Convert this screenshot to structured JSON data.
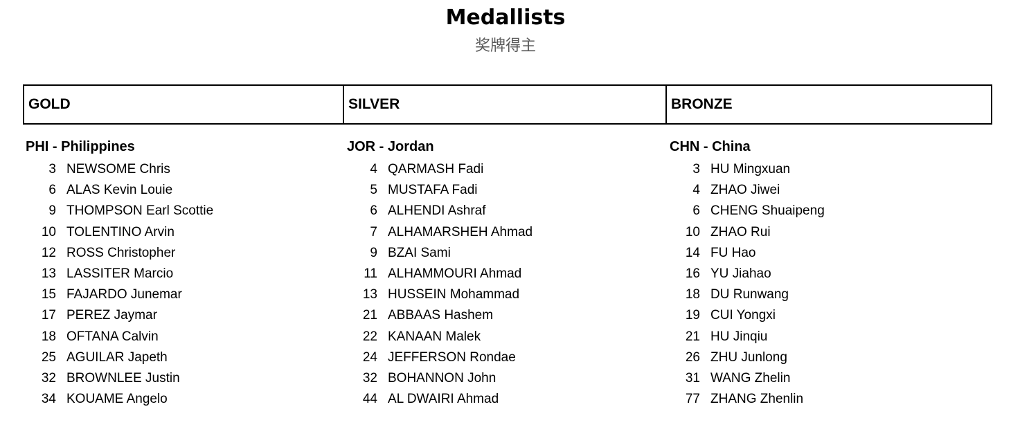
{
  "page": {
    "title": "Medallists",
    "subtitle": "奖牌得主"
  },
  "colors": {
    "text": "#000000",
    "subtitle_gray": "#595959",
    "border": "#000000",
    "background": "#ffffff"
  },
  "columns": [
    {
      "medal": "GOLD",
      "team": "PHI - Philippines",
      "players": [
        {
          "number": "3",
          "name": "NEWSOME Chris"
        },
        {
          "number": "6",
          "name": "ALAS Kevin Louie"
        },
        {
          "number": "9",
          "name": "THOMPSON Earl Scottie"
        },
        {
          "number": "10",
          "name": "TOLENTINO Arvin"
        },
        {
          "number": "12",
          "name": "ROSS Christopher"
        },
        {
          "number": "13",
          "name": "LASSITER Marcio"
        },
        {
          "number": "15",
          "name": "FAJARDO Junemar"
        },
        {
          "number": "17",
          "name": "PEREZ Jaymar"
        },
        {
          "number": "18",
          "name": "OFTANA Calvin"
        },
        {
          "number": "25",
          "name": "AGUILAR Japeth"
        },
        {
          "number": "32",
          "name": "BROWNLEE Justin"
        },
        {
          "number": "34",
          "name": "KOUAME Angelo"
        }
      ]
    },
    {
      "medal": "SILVER",
      "team": "JOR - Jordan",
      "players": [
        {
          "number": "4",
          "name": "QARMASH Fadi"
        },
        {
          "number": "5",
          "name": "MUSTAFA Fadi"
        },
        {
          "number": "6",
          "name": "ALHENDI Ashraf"
        },
        {
          "number": "7",
          "name": "ALHAMARSHEH Ahmad"
        },
        {
          "number": "9",
          "name": "BZAI Sami"
        },
        {
          "number": "11",
          "name": "ALHAMMOURI Ahmad"
        },
        {
          "number": "13",
          "name": "HUSSEIN Mohammad"
        },
        {
          "number": "21",
          "name": "ABBAAS Hashem"
        },
        {
          "number": "22",
          "name": "KANAAN Malek"
        },
        {
          "number": "24",
          "name": "JEFFERSON Rondae"
        },
        {
          "number": "32",
          "name": "BOHANNON John"
        },
        {
          "number": "44",
          "name": "AL DWAIRI Ahmad"
        }
      ]
    },
    {
      "medal": "BRONZE",
      "team": "CHN - China",
      "players": [
        {
          "number": "3",
          "name": "HU Mingxuan"
        },
        {
          "number": "4",
          "name": "ZHAO Jiwei"
        },
        {
          "number": "6",
          "name": "CHENG Shuaipeng"
        },
        {
          "number": "10",
          "name": "ZHAO Rui"
        },
        {
          "number": "14",
          "name": "FU Hao"
        },
        {
          "number": "16",
          "name": "YU Jiahao"
        },
        {
          "number": "18",
          "name": "DU Runwang"
        },
        {
          "number": "19",
          "name": "CUI Yongxi"
        },
        {
          "number": "21",
          "name": "HU Jinqiu"
        },
        {
          "number": "26",
          "name": "ZHU Junlong"
        },
        {
          "number": "31",
          "name": "WANG Zhelin"
        },
        {
          "number": "77",
          "name": "ZHANG Zhenlin"
        }
      ]
    }
  ]
}
